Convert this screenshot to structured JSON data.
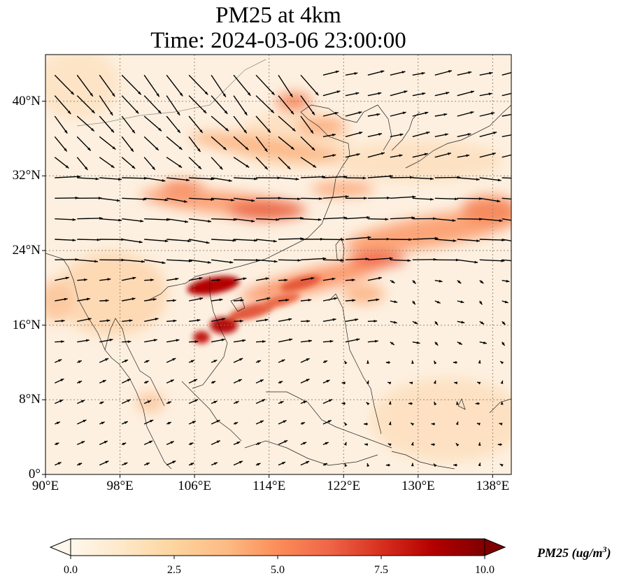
{
  "title_line1": "PM25 at 4km",
  "title_line2": "Time: 2024-03-06 23:00:00",
  "map": {
    "lon_range": [
      90,
      140
    ],
    "lat_range": [
      0,
      45
    ],
    "lon_ticks": [
      "90°E",
      "98°E",
      "106°E",
      "114°E",
      "122°E",
      "130°E",
      "138°E"
    ],
    "lat_ticks": [
      "0°",
      "8°N",
      "16°N",
      "24°N",
      "32°N",
      "40°N"
    ],
    "lon_tick_values": [
      90,
      98,
      106,
      114,
      122,
      130,
      138
    ],
    "lat_tick_values": [
      0,
      8,
      16,
      24,
      32,
      40
    ]
  },
  "colorbar": {
    "label": "PM25 (ug/m",
    "label_sup": "3",
    "label_end": ")",
    "ticks": [
      "0.0",
      "2.5",
      "5.0",
      "7.5",
      "10.0"
    ],
    "tick_values": [
      0,
      2.5,
      5,
      7.5,
      10
    ],
    "min": 0,
    "max": 10,
    "colormap": "OrRd",
    "colors": [
      "#fff7ec",
      "#fee8c8",
      "#fdd49e",
      "#fdbb84",
      "#fc8d59",
      "#ef6548",
      "#d7301f",
      "#b30000",
      "#7f0000"
    ]
  }
}
